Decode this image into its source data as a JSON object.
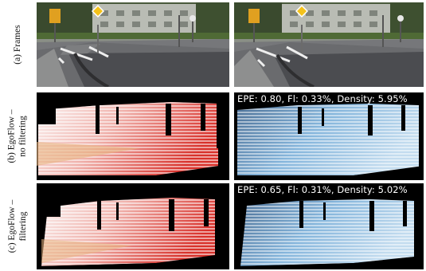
{
  "rows": [
    {
      "label_lines": [
        "(a) Frames"
      ]
    },
    {
      "label_lines": [
        "(b) EgoFlow –",
        "no filtering"
      ]
    },
    {
      "label_lines": [
        "(c) EgoFlow –",
        "filtering"
      ]
    }
  ],
  "panels": {
    "b": {
      "epe": "EPE: 0.80",
      "fl": "Fl: 0.33%",
      "density": "Density: 5.95%"
    },
    "c": {
      "epe": "EPE: 0.65",
      "fl": "Fl: 0.31%",
      "density": "Density: 5.02%"
    }
  },
  "colors": {
    "flow_red": "#e0443a",
    "flow_white": "#fbf3f2",
    "error_blue": "#7fb0d8",
    "background_black": "#000000"
  }
}
